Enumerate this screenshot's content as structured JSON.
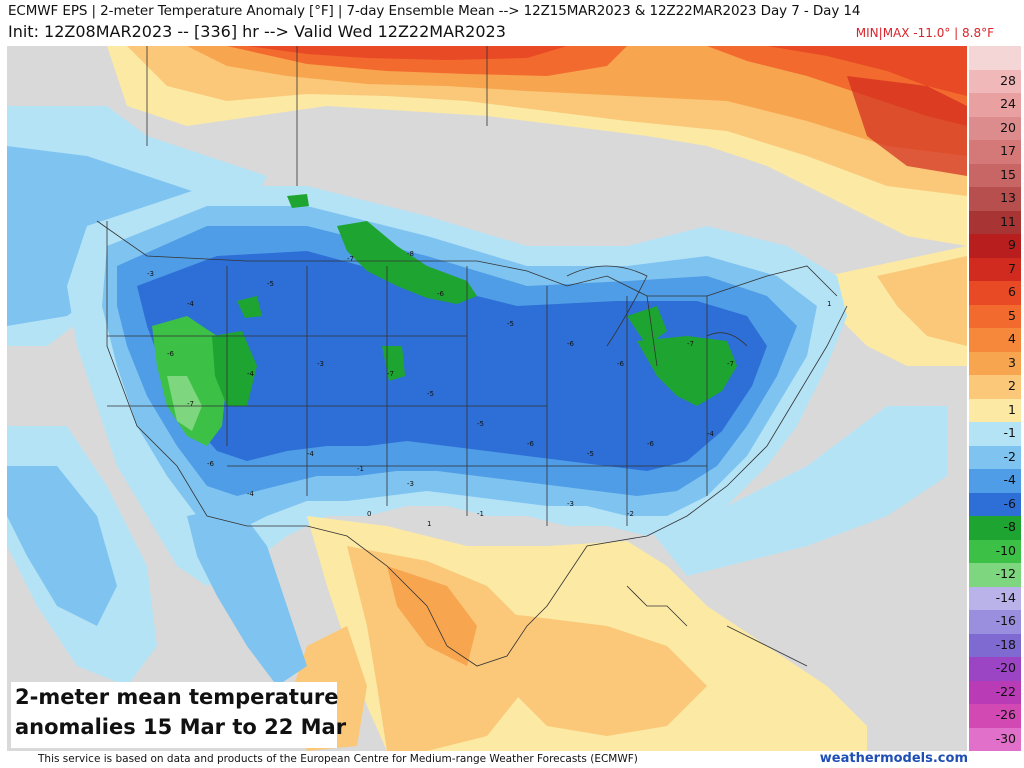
{
  "header": {
    "title_line1": "ECMWF EPS | 2-meter Temperature Anomaly [°F] | 7-day Ensemble Mean --> 12Z15MAR2023 & 12Z22MAR2023   Day 7 - Day 14",
    "title_line2": "Init: 12Z08MAR2023 -- [336] hr --> Valid Wed 12Z22MAR2023",
    "minmax": "MIN|MAX -11.0° | 8.8°F"
  },
  "caption": {
    "line1": "2-meter mean temperature",
    "line2": "anomalies 15 Mar to 22 Mar"
  },
  "footer": {
    "credit": "This service is based on data and products of the European Centre for Medium-range Weather Forecasts (ECMWF)",
    "brand": "weathermodels.com"
  },
  "legend": [
    {
      "label": "",
      "color": "#f5d6d6"
    },
    {
      "label": "28",
      "color": "#f0b8b8"
    },
    {
      "label": "24",
      "color": "#e8a0a0"
    },
    {
      "label": "20",
      "color": "#dc8c8c"
    },
    {
      "label": "17",
      "color": "#d47878"
    },
    {
      "label": "15",
      "color": "#c86666"
    },
    {
      "label": "13",
      "color": "#b84f4f"
    },
    {
      "label": "11",
      "color": "#a83434"
    },
    {
      "label": "9",
      "color": "#b81e1e"
    },
    {
      "label": "7",
      "color": "#d12a1e"
    },
    {
      "label": "6",
      "color": "#e84a25"
    },
    {
      "label": "5",
      "color": "#f36a2e"
    },
    {
      "label": "4",
      "color": "#f5883a"
    },
    {
      "label": "3",
      "color": "#f7a54f"
    },
    {
      "label": "2",
      "color": "#fac878"
    },
    {
      "label": "1",
      "color": "#fbe9a4"
    },
    {
      "label": "-1",
      "color": "#b5e3f6"
    },
    {
      "label": "-2",
      "color": "#7fc4f0"
    },
    {
      "label": "-4",
      "color": "#4f9de6"
    },
    {
      "label": "-6",
      "color": "#2d6fd6"
    },
    {
      "label": "-8",
      "color": "#1ea431"
    },
    {
      "label": "-10",
      "color": "#3cc046"
    },
    {
      "label": "-12",
      "color": "#7ed67e"
    },
    {
      "label": "-14",
      "color": "#b9b3ea"
    },
    {
      "label": "-16",
      "color": "#9a8ede"
    },
    {
      "label": "-18",
      "color": "#7f6ad2"
    },
    {
      "label": "-20",
      "color": "#9b44c4"
    },
    {
      "label": "-22",
      "color": "#b93bb5"
    },
    {
      "label": "-26",
      "color": "#d249b3"
    },
    {
      "label": "-30",
      "color": "#e070c9"
    }
  ],
  "colors": {
    "neutral": "#d9d9d9",
    "warm1": "#fbe9a4",
    "warm2": "#fac878",
    "warm3": "#f7a54f",
    "warm4": "#f5883a",
    "warm5": "#f36a2e",
    "warm6": "#e84a25",
    "warm7": "#d12a1e",
    "cold1": "#b5e3f6",
    "cold2": "#7fc4f0",
    "cold3": "#4f9de6",
    "cold4": "#2d6fd6",
    "green": "#1ea431",
    "lightgreen": "#7ed67e"
  }
}
